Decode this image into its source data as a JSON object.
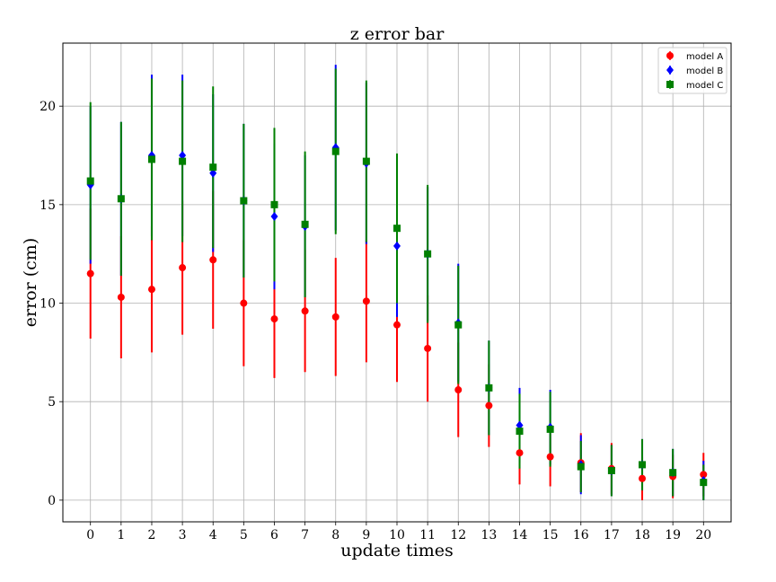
{
  "chart_data": {
    "type": "scatter",
    "title": "z error bar",
    "xlabel": "update times",
    "ylabel": "error (cm)",
    "x": [
      0,
      1,
      2,
      3,
      4,
      5,
      6,
      7,
      8,
      9,
      10,
      11,
      12,
      13,
      14,
      15,
      16,
      17,
      18,
      19,
      20
    ],
    "xticks": [
      "0",
      "1",
      "2",
      "3",
      "4",
      "5",
      "6",
      "7",
      "8",
      "9",
      "10",
      "11",
      "12",
      "13",
      "14",
      "15",
      "16",
      "17",
      "18",
      "19",
      "20"
    ],
    "xlim": [
      -0.9,
      20.9
    ],
    "ylim": [
      -1.1,
      23.2
    ],
    "yticks": [
      0,
      5,
      10,
      15,
      20
    ],
    "ytick_labels": [
      "0",
      "5",
      "10",
      "15",
      "20"
    ],
    "grid": true,
    "legend_position": "top-right",
    "series": [
      {
        "name": "model A",
        "color": "#ff0000",
        "marker": "circle",
        "y": [
          11.5,
          10.3,
          10.7,
          11.8,
          12.2,
          10.0,
          9.2,
          9.6,
          9.3,
          10.1,
          8.9,
          7.7,
          5.6,
          4.8,
          2.4,
          2.2,
          1.9,
          1.6,
          1.1,
          1.2,
          1.3
        ],
        "error": [
          3.3,
          3.1,
          3.2,
          3.4,
          3.5,
          3.2,
          3.0,
          3.1,
          3.0,
          3.1,
          2.9,
          2.7,
          2.4,
          2.1,
          1.6,
          1.5,
          1.5,
          1.3,
          1.1,
          1.1,
          1.1
        ]
      },
      {
        "name": "model B",
        "color": "#0000ff",
        "marker": "diamond",
        "y": [
          16.0,
          15.3,
          17.5,
          17.5,
          16.6,
          15.2,
          14.4,
          13.9,
          17.9,
          17.1,
          12.9,
          12.5,
          9.0,
          5.7,
          3.8,
          3.7,
          1.8,
          1.5,
          1.8,
          1.4,
          1.0
        ],
        "error": [
          4.0,
          3.9,
          4.1,
          4.1,
          4.0,
          3.9,
          3.7,
          3.6,
          4.2,
          4.1,
          3.6,
          3.4,
          3.0,
          2.4,
          1.9,
          1.9,
          1.5,
          1.3,
          1.3,
          1.2,
          1.0
        ]
      },
      {
        "name": "model C",
        "color": "#008000",
        "marker": "square",
        "y": [
          16.2,
          15.3,
          17.3,
          17.2,
          16.9,
          15.2,
          15.0,
          14.0,
          17.7,
          17.2,
          13.8,
          12.5,
          8.9,
          5.7,
          3.5,
          3.6,
          1.7,
          1.5,
          1.8,
          1.4,
          0.9
        ],
        "error": [
          4.0,
          3.9,
          4.1,
          4.1,
          4.1,
          3.9,
          3.9,
          3.7,
          4.2,
          4.1,
          3.8,
          3.5,
          3.0,
          2.4,
          1.9,
          1.9,
          1.3,
          1.3,
          1.3,
          1.2,
          0.9
        ]
      }
    ]
  }
}
